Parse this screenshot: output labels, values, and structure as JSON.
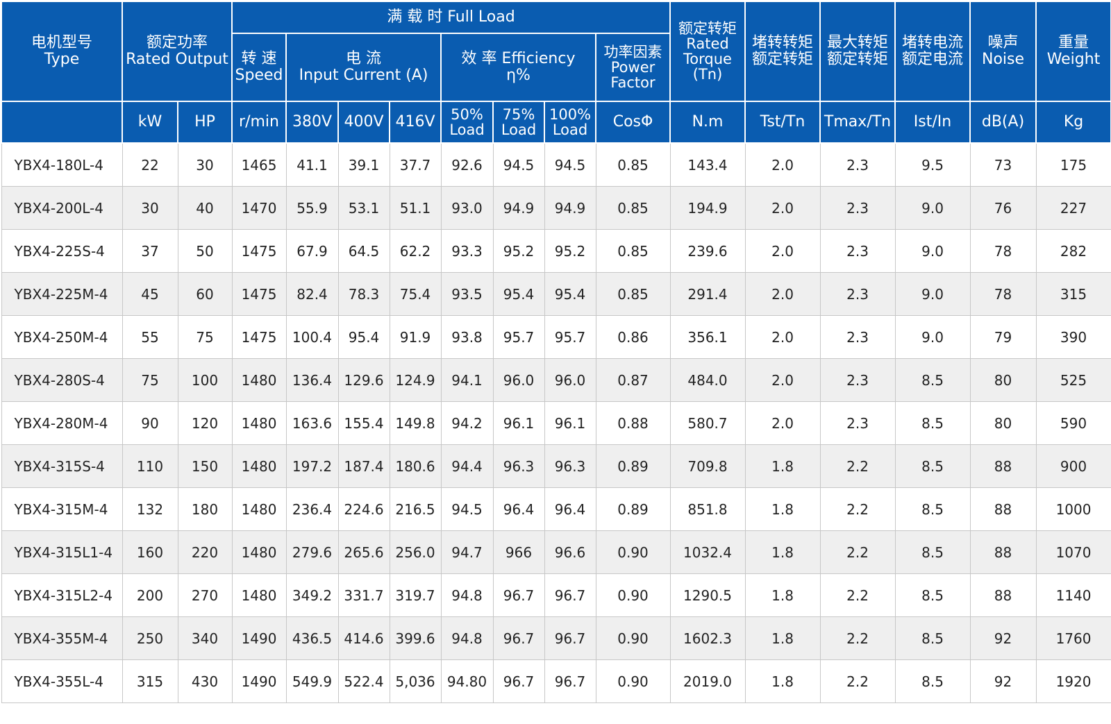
{
  "colors": {
    "header_bg": "#0a5cb0",
    "header_text": "#ffffff",
    "row_alt": "#efefef",
    "border": "#c7c7c7"
  },
  "headers": {
    "type": [
      "电机型号",
      "Type"
    ],
    "rated_output": [
      "额定功率",
      "Rated Output"
    ],
    "full_load": "满 载 时  Full Load",
    "speed": [
      "转 速",
      "Speed"
    ],
    "current": [
      "电 流",
      "Input Current (A)"
    ],
    "efficiency": [
      "效 率 Efficiency",
      "η%"
    ],
    "power_factor": [
      "功率因素",
      "Power",
      "Factor"
    ],
    "rated_torque": [
      "额定转矩",
      "Rated",
      "Torque",
      "(Tn)"
    ],
    "locked_torque": [
      "堵转转矩",
      "额定转矩"
    ],
    "max_torque": [
      "最大转矩",
      "额定转矩"
    ],
    "locked_current": [
      "堵转电流",
      "额定电流"
    ],
    "noise": [
      "噪声",
      "Noise"
    ],
    "weight": [
      "重量",
      "Weight"
    ]
  },
  "units": {
    "kw": "kW",
    "hp": "HP",
    "speed": "r/min",
    "v380": "380V",
    "v400": "400V",
    "v416": "416V",
    "load50": [
      "50%",
      "Load"
    ],
    "load75": [
      "75%",
      "Load"
    ],
    "load100": [
      "100%",
      "Load"
    ],
    "cos": "CosΦ",
    "torque": "N.m",
    "tst": "Tst/Tn",
    "tmax": "Tmax/Tn",
    "ist": "Ist/In",
    "noise": "dB(A)",
    "weight": "Kg"
  },
  "rows": [
    [
      "YBX4-180L-4",
      "22",
      "30",
      "1465",
      "41.1",
      "39.1",
      "37.7",
      "92.6",
      "94.5",
      "94.5",
      "0.85",
      "143.4",
      "2.0",
      "2.3",
      "9.5",
      "73",
      "175"
    ],
    [
      "YBX4-200L-4",
      "30",
      "40",
      "1470",
      "55.9",
      "53.1",
      "51.1",
      "93.0",
      "94.9",
      "94.9",
      "0.85",
      "194.9",
      "2.0",
      "2.3",
      "9.0",
      "76",
      "227"
    ],
    [
      "YBX4-225S-4",
      "37",
      "50",
      "1475",
      "67.9",
      "64.5",
      "62.2",
      "93.3",
      "95.2",
      "95.2",
      "0.85",
      "239.6",
      "2.0",
      "2.3",
      "9.0",
      "78",
      "282"
    ],
    [
      "YBX4-225M-4",
      "45",
      "60",
      "1475",
      "82.4",
      "78.3",
      "75.4",
      "93.5",
      "95.4",
      "95.4",
      "0.85",
      "291.4",
      "2.0",
      "2.3",
      "9.0",
      "78",
      "315"
    ],
    [
      "YBX4-250M-4",
      "55",
      "75",
      "1475",
      "100.4",
      "95.4",
      "91.9",
      "93.8",
      "95.7",
      "95.7",
      "0.86",
      "356.1",
      "2.0",
      "2.3",
      "9.0",
      "79",
      "390"
    ],
    [
      "YBX4-280S-4",
      "75",
      "100",
      "1480",
      "136.4",
      "129.6",
      "124.9",
      "94.1",
      "96.0",
      "96.0",
      "0.87",
      "484.0",
      "2.0",
      "2.3",
      "8.5",
      "80",
      "525"
    ],
    [
      "YBX4-280M-4",
      "90",
      "120",
      "1480",
      "163.6",
      "155.4",
      "149.8",
      "94.2",
      "96.1",
      "96.1",
      "0.88",
      "580.7",
      "2.0",
      "2.3",
      "8.5",
      "80",
      "590"
    ],
    [
      "YBX4-315S-4",
      "110",
      "150",
      "1480",
      "197.2",
      "187.4",
      "180.6",
      "94.4",
      "96.3",
      "96.3",
      "0.89",
      "709.8",
      "1.8",
      "2.2",
      "8.5",
      "88",
      "900"
    ],
    [
      "YBX4-315M-4",
      "132",
      "180",
      "1480",
      "236.4",
      "224.6",
      "216.5",
      "94.5",
      "96.4",
      "96.4",
      "0.89",
      "851.8",
      "1.8",
      "2.2",
      "8.5",
      "88",
      "1000"
    ],
    [
      "YBX4-315L1-4",
      "160",
      "220",
      "1480",
      "279.6",
      "265.6",
      "256.0",
      "94.7",
      "966",
      "96.6",
      "0.90",
      "1032.4",
      "1.8",
      "2.2",
      "8.5",
      "88",
      "1070"
    ],
    [
      "YBX4-315L2-4",
      "200",
      "270",
      "1480",
      "349.2",
      "331.7",
      "319.7",
      "94.8",
      "96.7",
      "96.7",
      "0.90",
      "1290.5",
      "1.8",
      "2.2",
      "8.5",
      "88",
      "1140"
    ],
    [
      "YBX4-355M-4",
      "250",
      "340",
      "1490",
      "436.5",
      "414.6",
      "399.6",
      "94.8",
      "96.7",
      "96.7",
      "0.90",
      "1602.3",
      "1.8",
      "2.2",
      "8.5",
      "92",
      "1760"
    ],
    [
      "YBX4-355L-4",
      "315",
      "430",
      "1490",
      "549.9",
      "522.4",
      "5,036",
      "94.80",
      "96.7",
      "96.7",
      "0.90",
      "2019.0",
      "1.8",
      "2.2",
      "8.5",
      "92",
      "1920"
    ]
  ]
}
